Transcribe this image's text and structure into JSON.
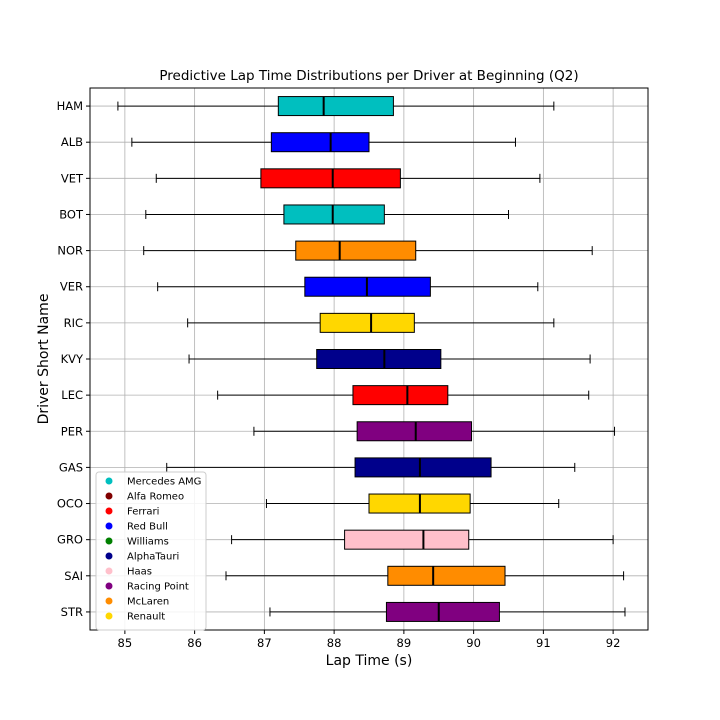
{
  "chart_data": {
    "type": "boxplot",
    "orientation": "horizontal",
    "title": "Predictive Lap Time Distributions per Driver at Beginning (Q2)",
    "xlabel": "Lap Time (s)",
    "ylabel": "Driver Short Name",
    "xlim": [
      84.5,
      92.5
    ],
    "xticks": [
      85,
      86,
      87,
      88,
      89,
      90,
      91,
      92
    ],
    "grid": true,
    "legend_position": "lower-left",
    "drivers": [
      {
        "name": "HAM",
        "team": "Mercedes AMG",
        "whisker_low": 84.9,
        "q1": 87.2,
        "median": 87.85,
        "q3": 88.85,
        "whisker_high": 91.15
      },
      {
        "name": "ALB",
        "team": "Red Bull",
        "whisker_low": 85.1,
        "q1": 87.1,
        "median": 87.95,
        "q3": 88.5,
        "whisker_high": 90.6
      },
      {
        "name": "VET",
        "team": "Ferrari",
        "whisker_low": 85.45,
        "q1": 86.95,
        "median": 87.98,
        "q3": 88.95,
        "whisker_high": 90.95
      },
      {
        "name": "BOT",
        "team": "Mercedes AMG",
        "whisker_low": 85.3,
        "q1": 87.28,
        "median": 87.98,
        "q3": 88.72,
        "whisker_high": 90.5
      },
      {
        "name": "NOR",
        "team": "McLaren",
        "whisker_low": 85.27,
        "q1": 87.45,
        "median": 88.08,
        "q3": 89.17,
        "whisker_high": 91.7
      },
      {
        "name": "VER",
        "team": "Red Bull",
        "whisker_low": 85.47,
        "q1": 87.58,
        "median": 88.47,
        "q3": 89.38,
        "whisker_high": 90.92
      },
      {
        "name": "RIC",
        "team": "Renault",
        "whisker_low": 85.9,
        "q1": 87.8,
        "median": 88.53,
        "q3": 89.15,
        "whisker_high": 91.15
      },
      {
        "name": "KVY",
        "team": "AlphaTauri",
        "whisker_low": 85.92,
        "q1": 87.75,
        "median": 88.72,
        "q3": 89.53,
        "whisker_high": 91.67
      },
      {
        "name": "LEC",
        "team": "Ferrari",
        "whisker_low": 86.33,
        "q1": 88.27,
        "median": 89.05,
        "q3": 89.63,
        "whisker_high": 91.65
      },
      {
        "name": "PER",
        "team": "Racing Point",
        "whisker_low": 86.85,
        "q1": 88.33,
        "median": 89.17,
        "q3": 89.97,
        "whisker_high": 92.02
      },
      {
        "name": "GAS",
        "team": "AlphaTauri",
        "whisker_low": 85.6,
        "q1": 88.3,
        "median": 89.23,
        "q3": 90.25,
        "whisker_high": 91.45
      },
      {
        "name": "OCO",
        "team": "Renault",
        "whisker_low": 87.03,
        "q1": 88.5,
        "median": 89.23,
        "q3": 89.95,
        "whisker_high": 91.22
      },
      {
        "name": "GRO",
        "team": "Haas",
        "whisker_low": 86.53,
        "q1": 88.15,
        "median": 89.28,
        "q3": 89.93,
        "whisker_high": 92.0
      },
      {
        "name": "SAI",
        "team": "McLaren",
        "whisker_low": 86.45,
        "q1": 88.77,
        "median": 89.42,
        "q3": 90.45,
        "whisker_high": 92.15
      },
      {
        "name": "STR",
        "team": "Racing Point",
        "whisker_low": 87.08,
        "q1": 88.75,
        "median": 89.5,
        "q3": 90.37,
        "whisker_high": 92.17
      }
    ],
    "legend": [
      {
        "label": "Mercedes AMG",
        "color": "#00bfbf"
      },
      {
        "label": "Alfa Romeo",
        "color": "#800000"
      },
      {
        "label": "Ferrari",
        "color": "#ff0000"
      },
      {
        "label": "Red Bull",
        "color": "#0000ff"
      },
      {
        "label": "Williams",
        "color": "#008000"
      },
      {
        "label": "AlphaTauri",
        "color": "#00008b"
      },
      {
        "label": "Haas",
        "color": "#ffc0cb"
      },
      {
        "label": "Racing Point",
        "color": "#800080"
      },
      {
        "label": "McLaren",
        "color": "#ff8c00"
      },
      {
        "label": "Renault",
        "color": "#ffd700"
      }
    ]
  }
}
